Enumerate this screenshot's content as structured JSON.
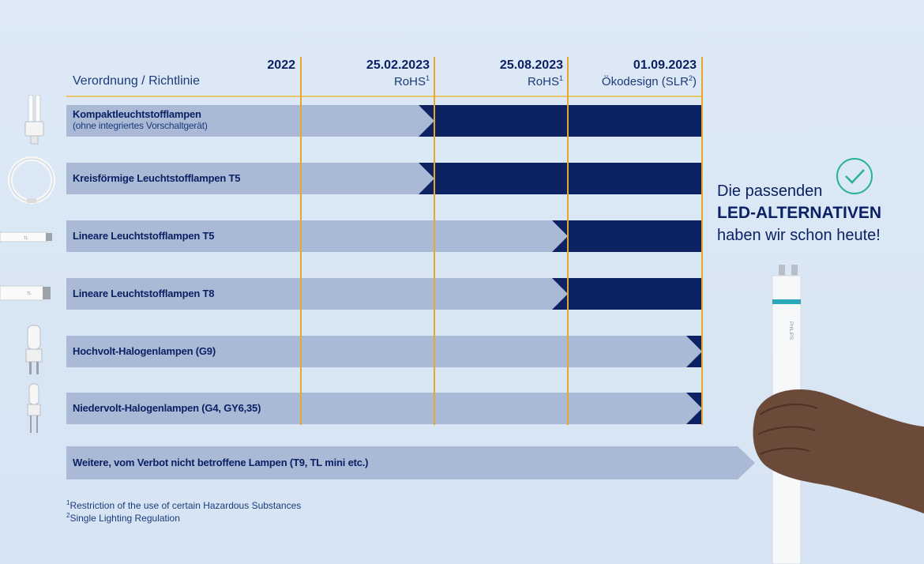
{
  "header": {
    "label": "Verordnung / Richtlinie",
    "columns": [
      {
        "date": "2022",
        "sub": "",
        "sup": ""
      },
      {
        "date": "25.02.2023",
        "sub": "RoHS",
        "sup": "1"
      },
      {
        "date": "25.08.2023",
        "sub": "RoHS",
        "sup": "1"
      },
      {
        "date": "01.09.2023",
        "sub": "Ökodesign (SLR",
        "sup": "2",
        "sub_end": ")"
      }
    ]
  },
  "rows": [
    {
      "label": "Kompaktleuchtstofflampen",
      "sublabel": "(ohne integriertes Vorschaltgerät)",
      "ban_stage": 2,
      "icon": "compact-fluorescent-lamp-icon"
    },
    {
      "label": "Kreisförmige Leuchtstofflampen T5",
      "sublabel": "",
      "ban_stage": 2,
      "icon": "circular-fluorescent-lamp-icon"
    },
    {
      "label": "Lineare Leuchtstofflampen T5",
      "sublabel": "",
      "ban_stage": 3,
      "icon": "linear-t5-lamp-icon"
    },
    {
      "label": "Lineare Leuchtstofflampen T8",
      "sublabel": "",
      "ban_stage": 3,
      "icon": "linear-t8-lamp-icon"
    },
    {
      "label": "Hochvolt-Halogenlampen (G9)",
      "sublabel": "",
      "ban_stage": 4,
      "icon": "g9-halogen-lamp-icon"
    },
    {
      "label": "Niedervolt-Halogenlampen (G4, GY6,35)",
      "sublabel": "",
      "ban_stage": 4,
      "icon": "g4-halogen-lamp-icon"
    }
  ],
  "other_row": {
    "label": "Weitere, vom Verbot nicht betroffene Lampen (T9, TL mini etc.)"
  },
  "footnotes": [
    {
      "mark": "1",
      "text": "Restriction of the use of certain Hazardous Substances"
    },
    {
      "mark": "2",
      "text": "Single Lighting Regulation"
    }
  ],
  "claim": {
    "line1": "Die passenden",
    "line2": "LED-ALTERNATIVEN",
    "line3": "haben wir schon heute!"
  },
  "colors": {
    "dark": "#0c2263",
    "light": "#a9b9d6",
    "gold": "#e7a829",
    "check": "#2bb38f"
  }
}
